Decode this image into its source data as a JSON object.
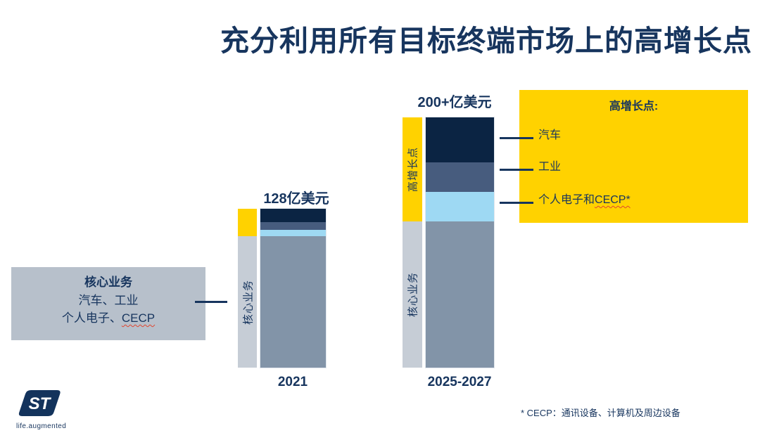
{
  "slide": {
    "title": "充分利用所有目标终端市场上的高增长点"
  },
  "core_box": {
    "heading": "核心业务",
    "line1": "汽车、工业",
    "line2_prefix": "个人电子、",
    "line2_cecp": "CECP"
  },
  "bars": {
    "b2021": {
      "total": "128亿美元",
      "year": "2021",
      "side_core": "核心业务"
    },
    "b2025": {
      "total": "200+亿美元",
      "year": "2025-2027",
      "side_high": "高增长点",
      "side_core": "核心业务"
    }
  },
  "highlight_box": {
    "title": "高增长点:",
    "item1": "汽车",
    "item2": "工业",
    "item3_prefix": "个人电子和",
    "item3_cecp": "CECP*"
  },
  "footnote": {
    "text": "* CECP：通讯设备、计算机及周边设备"
  },
  "logo": {
    "brand": "ST",
    "tagline": "life.augmented"
  },
  "colors": {
    "title_navy": "#17355E",
    "brand_yellow": "#FFD200",
    "segment_navy": "#0B2443",
    "segment_slate": "#475C7E",
    "segment_lightblue": "#9ED9F3",
    "segment_grayblue": "#8294A8",
    "side_gray": "#C6CDD6",
    "callout_gray": "#B7C0CB",
    "squiggle_red": "#E0452F"
  },
  "chart_data": {
    "type": "bar",
    "subtype": "stacked",
    "title": "充分利用所有目标终端市场上的高增长点",
    "unit": "亿美元",
    "categories": [
      "2021",
      "2025-2027"
    ],
    "totals_labeled": [
      "128亿美元",
      "200+亿美元"
    ],
    "series": [
      {
        "name": "核心业务",
        "color": "#8294A8",
        "values": [
          106,
          118
        ]
      },
      {
        "name": "个人电子和CECP",
        "color": "#9ED9F3",
        "values": [
          5,
          24
        ]
      },
      {
        "name": "工业",
        "color": "#475C7E",
        "values": [
          6,
          24
        ]
      },
      {
        "name": "汽车",
        "color": "#0B2443",
        "values": [
          11,
          36
        ]
      }
    ],
    "side_groups": [
      {
        "label": "核心业务",
        "members": [
          "核心业务"
        ],
        "color": "#C6CDD6"
      },
      {
        "label": "高增长点",
        "members": [
          "个人电子和CECP",
          "工业",
          "汽车"
        ],
        "color": "#FFD200"
      }
    ],
    "value_labels_shown": "totals only; segment values estimated from bar proportions",
    "legend_position": "right callout box",
    "grid": false,
    "axes_shown": false
  }
}
